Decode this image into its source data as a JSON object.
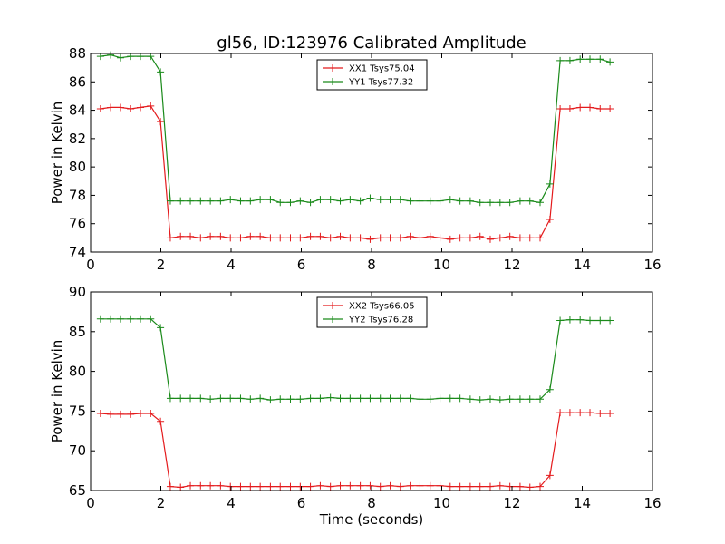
{
  "title": "gl56, ID:123976 Calibrated Amplitude",
  "chart_data": [
    {
      "type": "line",
      "ylabel": "Power in Kelvin",
      "xlabel": "",
      "xlim": [
        0,
        16
      ],
      "ylim": [
        74,
        88
      ],
      "xticks": [
        0,
        2,
        4,
        6,
        8,
        10,
        12,
        14,
        16
      ],
      "yticks": [
        74,
        76,
        78,
        80,
        82,
        84,
        86,
        88
      ],
      "legend_position": "upper-center",
      "grid": false,
      "x": [
        0.28,
        0.57,
        0.85,
        1.14,
        1.42,
        1.71,
        1.99,
        2.27,
        2.56,
        2.84,
        3.13,
        3.41,
        3.7,
        3.98,
        4.27,
        4.55,
        4.83,
        5.12,
        5.4,
        5.69,
        5.97,
        6.26,
        6.54,
        6.83,
        7.11,
        7.39,
        7.68,
        7.96,
        8.25,
        8.53,
        8.82,
        9.1,
        9.38,
        9.67,
        9.95,
        10.24,
        10.52,
        10.81,
        11.09,
        11.38,
        11.66,
        11.94,
        12.23,
        12.51,
        12.8,
        13.08,
        13.37,
        13.65,
        13.94,
        14.22,
        14.51,
        14.79
      ],
      "series": [
        {
          "name": "XX1 Tsys75.04",
          "color": "#e41a1c",
          "values": [
            84.1,
            84.2,
            84.2,
            84.1,
            84.2,
            84.3,
            83.2,
            75.0,
            75.1,
            75.1,
            75.0,
            75.1,
            75.1,
            75.0,
            75.0,
            75.1,
            75.1,
            75.0,
            75.0,
            75.0,
            75.0,
            75.1,
            75.1,
            75.0,
            75.1,
            75.0,
            75.0,
            74.9,
            75.0,
            75.0,
            75.0,
            75.1,
            75.0,
            75.1,
            75.0,
            74.9,
            75.0,
            75.0,
            75.1,
            74.9,
            75.0,
            75.1,
            75.0,
            75.0,
            75.0,
            76.3,
            84.1,
            84.1,
            84.2,
            84.2,
            84.1,
            84.1
          ]
        },
        {
          "name": "YY1 Tsys77.32",
          "color": "#1a8a1a",
          "values": [
            87.8,
            87.9,
            87.7,
            87.8,
            87.8,
            87.8,
            86.7,
            77.6,
            77.6,
            77.6,
            77.6,
            77.6,
            77.6,
            77.7,
            77.6,
            77.6,
            77.7,
            77.7,
            77.5,
            77.5,
            77.6,
            77.5,
            77.7,
            77.7,
            77.6,
            77.7,
            77.6,
            77.8,
            77.7,
            77.7,
            77.7,
            77.6,
            77.6,
            77.6,
            77.6,
            77.7,
            77.6,
            77.6,
            77.5,
            77.5,
            77.5,
            77.5,
            77.6,
            77.6,
            77.5,
            78.8,
            87.5,
            87.5,
            87.6,
            87.6,
            87.6,
            87.4
          ]
        }
      ]
    },
    {
      "type": "line",
      "ylabel": "Power in Kelvin",
      "xlabel": "Time (seconds)",
      "xlim": [
        0,
        16
      ],
      "ylim": [
        65,
        90
      ],
      "xticks": [
        0,
        2,
        4,
        6,
        8,
        10,
        12,
        14,
        16
      ],
      "yticks": [
        65,
        70,
        75,
        80,
        85,
        90
      ],
      "legend_position": "upper-center",
      "grid": false,
      "x": [
        0.28,
        0.57,
        0.85,
        1.14,
        1.42,
        1.71,
        1.99,
        2.27,
        2.56,
        2.84,
        3.13,
        3.41,
        3.7,
        3.98,
        4.27,
        4.55,
        4.83,
        5.12,
        5.4,
        5.69,
        5.97,
        6.26,
        6.54,
        6.83,
        7.11,
        7.39,
        7.68,
        7.96,
        8.25,
        8.53,
        8.82,
        9.1,
        9.38,
        9.67,
        9.95,
        10.24,
        10.52,
        10.81,
        11.09,
        11.38,
        11.66,
        11.94,
        12.23,
        12.51,
        12.8,
        13.08,
        13.37,
        13.65,
        13.94,
        14.22,
        14.51,
        14.79
      ],
      "series": [
        {
          "name": "XX2 Tsys66.05",
          "color": "#e41a1c",
          "values": [
            74.7,
            74.6,
            74.6,
            74.6,
            74.7,
            74.7,
            73.7,
            65.5,
            65.4,
            65.6,
            65.6,
            65.6,
            65.6,
            65.5,
            65.5,
            65.5,
            65.5,
            65.5,
            65.5,
            65.5,
            65.5,
            65.5,
            65.6,
            65.5,
            65.6,
            65.6,
            65.6,
            65.6,
            65.5,
            65.6,
            65.5,
            65.6,
            65.6,
            65.6,
            65.6,
            65.5,
            65.5,
            65.5,
            65.5,
            65.5,
            65.6,
            65.5,
            65.5,
            65.4,
            65.5,
            66.9,
            74.8,
            74.8,
            74.8,
            74.8,
            74.7,
            74.7
          ]
        },
        {
          "name": "YY2 Tsys76.28",
          "color": "#1a8a1a",
          "values": [
            86.6,
            86.6,
            86.6,
            86.6,
            86.6,
            86.6,
            85.5,
            76.6,
            76.6,
            76.6,
            76.6,
            76.5,
            76.6,
            76.6,
            76.6,
            76.5,
            76.6,
            76.4,
            76.5,
            76.5,
            76.5,
            76.6,
            76.6,
            76.7,
            76.6,
            76.6,
            76.6,
            76.6,
            76.6,
            76.6,
            76.6,
            76.6,
            76.5,
            76.5,
            76.6,
            76.6,
            76.6,
            76.5,
            76.4,
            76.5,
            76.4,
            76.5,
            76.5,
            76.5,
            76.5,
            77.7,
            86.4,
            86.5,
            86.5,
            86.4,
            86.4,
            86.4
          ]
        }
      ]
    }
  ]
}
